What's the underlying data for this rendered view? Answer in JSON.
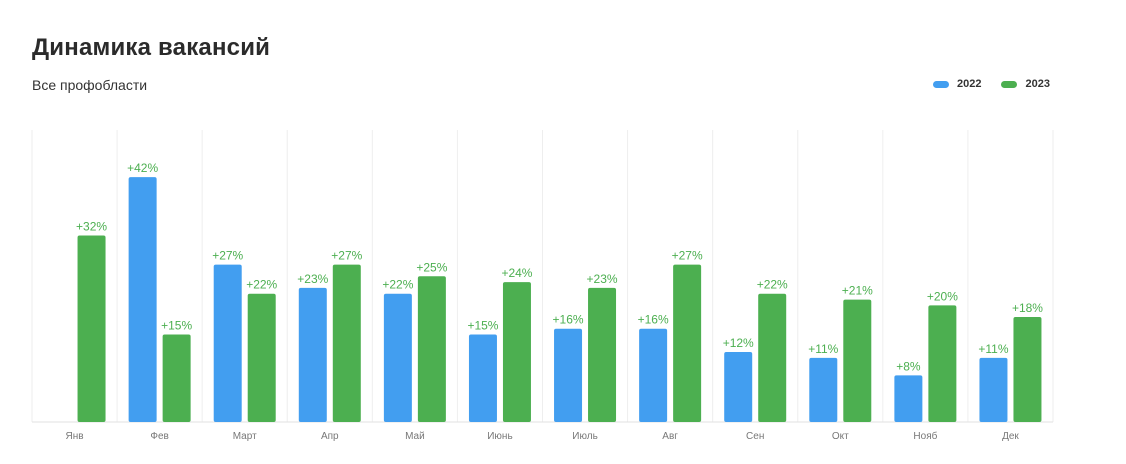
{
  "header": {
    "title": "Динамика вакансий",
    "subtitle": "Все профобласти"
  },
  "legend": [
    {
      "label": "2022",
      "color": "#429ef0"
    },
    {
      "label": "2023",
      "color": "#4caf50"
    }
  ],
  "chart_data": {
    "type": "bar",
    "title": "Динамика вакансий",
    "subtitle": "Все профобласти",
    "categories": [
      "Янв",
      "Фев",
      "Март",
      "Апр",
      "Май",
      "Июнь",
      "Июль",
      "Авг",
      "Сен",
      "Окт",
      "Нояб",
      "Дек"
    ],
    "series": [
      {
        "name": "2022",
        "color": "#429ef0",
        "values": [
          null,
          42,
          27,
          23,
          22,
          15,
          16,
          16,
          12,
          11,
          8,
          11
        ]
      },
      {
        "name": "2023",
        "color": "#4caf50",
        "values": [
          32,
          15,
          22,
          27,
          25,
          24,
          23,
          27,
          22,
          21,
          20,
          18
        ]
      }
    ],
    "value_format": "+{v}%",
    "label_color": "#4caf50",
    "ylim": [
      0,
      50
    ],
    "grid": "vertical separators",
    "legend_position": "top-right"
  }
}
